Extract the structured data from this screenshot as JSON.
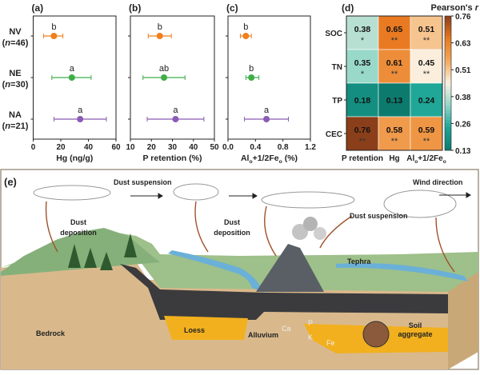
{
  "colors": {
    "NV": "#f07f1e",
    "NE": "#3fae49",
    "NA": "#8a5cb5"
  },
  "groups": [
    {
      "label": "NV",
      "n": "(n=46)"
    },
    {
      "label": "NE",
      "n": "(n=30)"
    },
    {
      "label": "NA",
      "n": "(n=21)"
    }
  ],
  "chart_data": [
    {
      "panel": "(a)",
      "type": "scatter",
      "xlabel": "Hg (ng/g)",
      "xlim": [
        0,
        60
      ],
      "xticks": [
        "0",
        "20",
        "40",
        "60"
      ],
      "xtick_values": [
        0,
        20,
        40,
        60
      ],
      "points": [
        {
          "group": "NV",
          "mean": 15,
          "low": 7.5,
          "high": 21.5,
          "letter": "b"
        },
        {
          "group": "NE",
          "mean": 28,
          "low": 13.5,
          "high": 42,
          "letter": "a"
        },
        {
          "group": "NA",
          "mean": 34,
          "low": 15,
          "high": 53,
          "letter": "a"
        }
      ]
    },
    {
      "panel": "(b)",
      "type": "scatter",
      "xlabel": "P retention (%)",
      "xlim": [
        10,
        50
      ],
      "xticks": [
        "10",
        "20",
        "30",
        "40",
        "50"
      ],
      "xtick_values": [
        10,
        20,
        30,
        40,
        50
      ],
      "points": [
        {
          "group": "NV",
          "mean": 24,
          "low": 18.5,
          "high": 29.5,
          "letter": "b"
        },
        {
          "group": "NE",
          "mean": 26,
          "low": 16,
          "high": 36,
          "letter": "ab"
        },
        {
          "group": "NA",
          "mean": 31.5,
          "low": 18,
          "high": 45,
          "letter": "a"
        }
      ]
    },
    {
      "panel": "(c)",
      "type": "scatter",
      "xlabel": "Alo+1/2Feo (%)",
      "xlim": [
        0,
        1.2
      ],
      "xticks": [
        "0.0",
        "0.4",
        "0.8",
        "1.2"
      ],
      "xtick_values": [
        0,
        0.4,
        0.8,
        1.2
      ],
      "points": [
        {
          "group": "NV",
          "mean": 0.26,
          "low": 0.18,
          "high": 0.34,
          "letter": "b"
        },
        {
          "group": "NE",
          "mean": 0.34,
          "low": 0.26,
          "high": 0.45,
          "letter": "b"
        },
        {
          "group": "NA",
          "mean": 0.56,
          "low": 0.24,
          "high": 0.88,
          "letter": "a"
        }
      ]
    },
    {
      "panel": "(d)",
      "type": "heatmap",
      "rows": [
        "SOC",
        "TN",
        "TP",
        "CEC"
      ],
      "columns": [
        "P retention",
        "Hg",
        "Alo+1/2Feo"
      ],
      "values": [
        [
          0.38,
          0.65,
          0.51
        ],
        [
          0.35,
          0.61,
          0.45
        ],
        [
          0.18,
          0.13,
          0.24
        ],
        [
          0.76,
          0.58,
          0.59
        ]
      ],
      "significance": [
        [
          "*",
          "**",
          "**"
        ],
        [
          "*",
          "**",
          "**"
        ],
        [
          "",
          "",
          ""
        ],
        [
          "**",
          "**",
          "**"
        ]
      ],
      "colorbar_title": "Pearson's r",
      "colorbar_ticks": [
        "0.76",
        "0.63",
        "0.51",
        "0.38",
        "0.26",
        "0.13"
      ],
      "colorbar_range": [
        0.13,
        0.76
      ],
      "colormap": [
        "#0d7a6e",
        "#1aa595",
        "#8fd6c8",
        "#fbf1e2",
        "#f3a85c",
        "#e8781f",
        "#8a3f1a"
      ]
    }
  ],
  "diagram": {
    "panel": "(e)",
    "labels": {
      "dust_suspension_1": "Dust suspension",
      "dust_deposition_1": "Dust",
      "dust_deposition_1b": "deposition",
      "dust_deposition_2": "Dust",
      "dust_deposition_2b": "deposition",
      "dust_suspension_2": "Dust suspension",
      "wind_direction": "Wind direction",
      "tephra": "Tephra",
      "bedrock": "Bedrock",
      "loess": "Loess",
      "alluvium": "Alluvium",
      "ca": "Ca",
      "p": "P",
      "k": "K",
      "fe": "Fe",
      "soil_aggregate_1": "Soil",
      "soil_aggregate_2": "aggregate"
    }
  }
}
